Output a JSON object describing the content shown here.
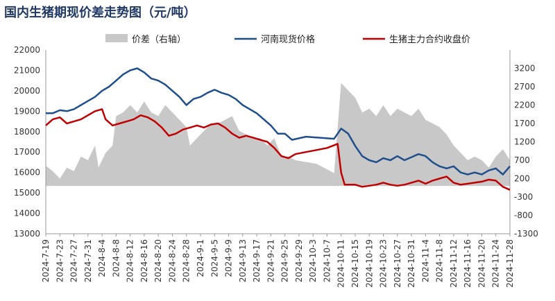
{
  "page": {
    "title": "国内生猪期现价差走势图（元/吨）"
  },
  "chart_data": {
    "type": "line",
    "title": "国内生猪期现价差走势图（元/吨）",
    "xlabel": "",
    "ylabel": "",
    "y_left": {
      "min": 13000,
      "max": 22000,
      "step": 1000,
      "ticks": [
        "13000",
        "14000",
        "15000",
        "16000",
        "17000",
        "18000",
        "19000",
        "20000",
        "21000",
        "22000"
      ]
    },
    "y_right": {
      "min": -1300,
      "max": 3700,
      "step": 500,
      "ticks": [
        "-1300",
        "-800",
        "-300",
        "200",
        "700",
        "1200",
        "1700",
        "2200",
        "2700",
        "3200"
      ]
    },
    "x_tick_labels": [
      "2024-7-19",
      "2024-7-23",
      "2024-7-27",
      "2024-7-31",
      "2024-8-4",
      "2024-8-8",
      "2024-8-12",
      "2024-8-16",
      "2024-8-20",
      "2024-8-24",
      "2024-8-28",
      "2024-9-1",
      "2024-9-5",
      "2024-9-9",
      "2024-9-13",
      "2024-9-17",
      "2024-9-21",
      "2024-9-25",
      "2024-9-29",
      "2024-10-3",
      "2024-10-7",
      "2024-10-11",
      "2024-10-15",
      "2024-10-19",
      "2024-10-23",
      "2024-10-27",
      "2024-10-31",
      "2024-11-4",
      "2024-11-8",
      "2024-11-12",
      "2024-11-16",
      "2024-11-20",
      "2024-11-24",
      "2024-11-28"
    ],
    "x_range": [
      "2024-7-19",
      "2024-11-28"
    ],
    "legend_position": "top",
    "series": [
      {
        "name": "价差（右轴）",
        "axis": "right",
        "kind": "area",
        "color": "#c8c8c8",
        "points": [
          [
            "2024-7-19",
            550
          ],
          [
            "2024-7-21",
            400
          ],
          [
            "2024-7-23",
            200
          ],
          [
            "2024-7-25",
            500
          ],
          [
            "2024-7-27",
            400
          ],
          [
            "2024-7-29",
            800
          ],
          [
            "2024-7-31",
            700
          ],
          [
            "2024-8-2",
            1100
          ],
          [
            "2024-8-3",
            500
          ],
          [
            "2024-8-5",
            900
          ],
          [
            "2024-8-7",
            1100
          ],
          [
            "2024-8-8",
            1900
          ],
          [
            "2024-8-10",
            2000
          ],
          [
            "2024-8-12",
            2200
          ],
          [
            "2024-8-14",
            2000
          ],
          [
            "2024-8-16",
            2300
          ],
          [
            "2024-8-18",
            2000
          ],
          [
            "2024-8-20",
            1900
          ],
          [
            "2024-8-22",
            2200
          ],
          [
            "2024-8-24",
            2000
          ],
          [
            "2024-8-26",
            1800
          ],
          [
            "2024-8-28",
            1600
          ],
          [
            "2024-8-29",
            1100
          ],
          [
            "2024-8-31",
            1300
          ],
          [
            "2024-9-2",
            1500
          ],
          [
            "2024-9-4",
            1700
          ],
          [
            "2024-9-6",
            1700
          ],
          [
            "2024-9-8",
            1800
          ],
          [
            "2024-9-10",
            1900
          ],
          [
            "2024-9-12",
            1500
          ],
          [
            "2024-9-14",
            1400
          ],
          [
            "2024-9-16",
            1300
          ],
          [
            "2024-9-18",
            1300
          ],
          [
            "2024-9-20",
            1100
          ],
          [
            "2024-9-22",
            1300
          ],
          [
            "2024-9-24",
            800
          ],
          [
            "2024-9-26",
            800
          ],
          [
            "2024-9-28",
            700
          ],
          [
            "2024-10-1",
            650
          ],
          [
            "2024-10-4",
            600
          ],
          [
            "2024-10-7",
            450
          ],
          [
            "2024-10-9",
            350
          ],
          [
            "2024-10-11",
            2800
          ],
          [
            "2024-10-13",
            2600
          ],
          [
            "2024-10-15",
            2400
          ],
          [
            "2024-10-17",
            2000
          ],
          [
            "2024-10-19",
            2100
          ],
          [
            "2024-10-21",
            1900
          ],
          [
            "2024-10-23",
            2200
          ],
          [
            "2024-10-25",
            1900
          ],
          [
            "2024-10-27",
            2100
          ],
          [
            "2024-10-29",
            2000
          ],
          [
            "2024-10-31",
            1900
          ],
          [
            "2024-11-2",
            2100
          ],
          [
            "2024-11-4",
            1800
          ],
          [
            "2024-11-6",
            1700
          ],
          [
            "2024-11-8",
            1600
          ],
          [
            "2024-11-10",
            1400
          ],
          [
            "2024-11-12",
            1100
          ],
          [
            "2024-11-14",
            900
          ],
          [
            "2024-11-16",
            700
          ],
          [
            "2024-11-18",
            800
          ],
          [
            "2024-11-20",
            700
          ],
          [
            "2024-11-22",
            500
          ],
          [
            "2024-11-24",
            800
          ],
          [
            "2024-11-26",
            1000
          ],
          [
            "2024-11-28",
            700
          ]
        ]
      },
      {
        "name": "河南现货价格",
        "axis": "left",
        "kind": "line",
        "color": "#1f4e8c",
        "points": [
          [
            "2024-7-19",
            18900
          ],
          [
            "2024-7-21",
            18900
          ],
          [
            "2024-7-23",
            19050
          ],
          [
            "2024-7-25",
            19000
          ],
          [
            "2024-7-27",
            19100
          ],
          [
            "2024-7-29",
            19300
          ],
          [
            "2024-7-31",
            19500
          ],
          [
            "2024-8-2",
            19700
          ],
          [
            "2024-8-4",
            20000
          ],
          [
            "2024-8-6",
            20200
          ],
          [
            "2024-8-8",
            20500
          ],
          [
            "2024-8-10",
            20800
          ],
          [
            "2024-8-12",
            21000
          ],
          [
            "2024-8-14",
            21100
          ],
          [
            "2024-8-16",
            20900
          ],
          [
            "2024-8-18",
            20600
          ],
          [
            "2024-8-20",
            20500
          ],
          [
            "2024-8-22",
            20300
          ],
          [
            "2024-8-24",
            20000
          ],
          [
            "2024-8-26",
            19700
          ],
          [
            "2024-8-28",
            19300
          ],
          [
            "2024-8-30",
            19600
          ],
          [
            "2024-9-1",
            19700
          ],
          [
            "2024-9-3",
            19900
          ],
          [
            "2024-9-5",
            20050
          ],
          [
            "2024-9-7",
            19900
          ],
          [
            "2024-9-9",
            19800
          ],
          [
            "2024-9-11",
            19600
          ],
          [
            "2024-9-13",
            19300
          ],
          [
            "2024-9-15",
            19100
          ],
          [
            "2024-9-17",
            18900
          ],
          [
            "2024-9-19",
            18600
          ],
          [
            "2024-9-21",
            18300
          ],
          [
            "2024-9-23",
            17900
          ],
          [
            "2024-9-25",
            17900
          ],
          [
            "2024-9-27",
            17600
          ],
          [
            "2024-10-1",
            17750
          ],
          [
            "2024-10-5",
            17700
          ],
          [
            "2024-10-9",
            17650
          ],
          [
            "2024-10-11",
            18150
          ],
          [
            "2024-10-13",
            17900
          ],
          [
            "2024-10-15",
            17300
          ],
          [
            "2024-10-17",
            16800
          ],
          [
            "2024-10-19",
            16600
          ],
          [
            "2024-10-21",
            16500
          ],
          [
            "2024-10-23",
            16700
          ],
          [
            "2024-10-25",
            16600
          ],
          [
            "2024-10-27",
            16800
          ],
          [
            "2024-10-29",
            16600
          ],
          [
            "2024-10-31",
            16750
          ],
          [
            "2024-11-2",
            16900
          ],
          [
            "2024-11-4",
            16800
          ],
          [
            "2024-11-6",
            16500
          ],
          [
            "2024-11-8",
            16300
          ],
          [
            "2024-11-10",
            16200
          ],
          [
            "2024-11-12",
            16300
          ],
          [
            "2024-11-14",
            16000
          ],
          [
            "2024-11-16",
            15900
          ],
          [
            "2024-11-18",
            16000
          ],
          [
            "2024-11-20",
            15900
          ],
          [
            "2024-11-22",
            16100
          ],
          [
            "2024-11-24",
            16200
          ],
          [
            "2024-11-26",
            15900
          ],
          [
            "2024-11-28",
            16300
          ]
        ]
      },
      {
        "name": "生猪主力合约收盘价",
        "axis": "left",
        "kind": "line",
        "color": "#c00000",
        "points": [
          [
            "2024-7-19",
            18300
          ],
          [
            "2024-7-21",
            18600
          ],
          [
            "2024-7-23",
            18700
          ],
          [
            "2024-7-25",
            18400
          ],
          [
            "2024-7-27",
            18500
          ],
          [
            "2024-7-29",
            18600
          ],
          [
            "2024-7-31",
            18800
          ],
          [
            "2024-8-2",
            19000
          ],
          [
            "2024-8-4",
            19100
          ],
          [
            "2024-8-5",
            18600
          ],
          [
            "2024-8-7",
            18300
          ],
          [
            "2024-8-9",
            18400
          ],
          [
            "2024-8-11",
            18500
          ],
          [
            "2024-8-13",
            18600
          ],
          [
            "2024-8-15",
            18800
          ],
          [
            "2024-8-17",
            18700
          ],
          [
            "2024-8-19",
            18500
          ],
          [
            "2024-8-21",
            18200
          ],
          [
            "2024-8-23",
            17800
          ],
          [
            "2024-8-25",
            17900
          ],
          [
            "2024-8-27",
            18100
          ],
          [
            "2024-8-29",
            18200
          ],
          [
            "2024-8-31",
            18300
          ],
          [
            "2024-9-2",
            18200
          ],
          [
            "2024-9-4",
            18350
          ],
          [
            "2024-9-6",
            18400
          ],
          [
            "2024-9-8",
            18200
          ],
          [
            "2024-9-10",
            17900
          ],
          [
            "2024-9-12",
            17700
          ],
          [
            "2024-9-14",
            17800
          ],
          [
            "2024-9-16",
            17700
          ],
          [
            "2024-9-18",
            17600
          ],
          [
            "2024-9-20",
            17500
          ],
          [
            "2024-9-22",
            17200
          ],
          [
            "2024-9-24",
            16800
          ],
          [
            "2024-9-26",
            16700
          ],
          [
            "2024-9-28",
            16900
          ],
          [
            "2024-10-1",
            17000
          ],
          [
            "2024-10-4",
            17100
          ],
          [
            "2024-10-7",
            17200
          ],
          [
            "2024-10-10",
            17400
          ],
          [
            "2024-10-11",
            16000
          ],
          [
            "2024-10-12",
            15400
          ],
          [
            "2024-10-15",
            15400
          ],
          [
            "2024-10-17",
            15300
          ],
          [
            "2024-10-19",
            15350
          ],
          [
            "2024-10-21",
            15400
          ],
          [
            "2024-10-23",
            15500
          ],
          [
            "2024-10-25",
            15400
          ],
          [
            "2024-10-27",
            15350
          ],
          [
            "2024-10-29",
            15400
          ],
          [
            "2024-10-31",
            15500
          ],
          [
            "2024-11-2",
            15600
          ],
          [
            "2024-11-4",
            15450
          ],
          [
            "2024-11-6",
            15600
          ],
          [
            "2024-11-8",
            15700
          ],
          [
            "2024-11-10",
            15800
          ],
          [
            "2024-11-12",
            15500
          ],
          [
            "2024-11-14",
            15400
          ],
          [
            "2024-11-16",
            15450
          ],
          [
            "2024-11-18",
            15500
          ],
          [
            "2024-11-20",
            15550
          ],
          [
            "2024-11-22",
            15650
          ],
          [
            "2024-11-24",
            15600
          ],
          [
            "2024-11-26",
            15300
          ],
          [
            "2024-11-28",
            15150
          ]
        ]
      }
    ]
  }
}
